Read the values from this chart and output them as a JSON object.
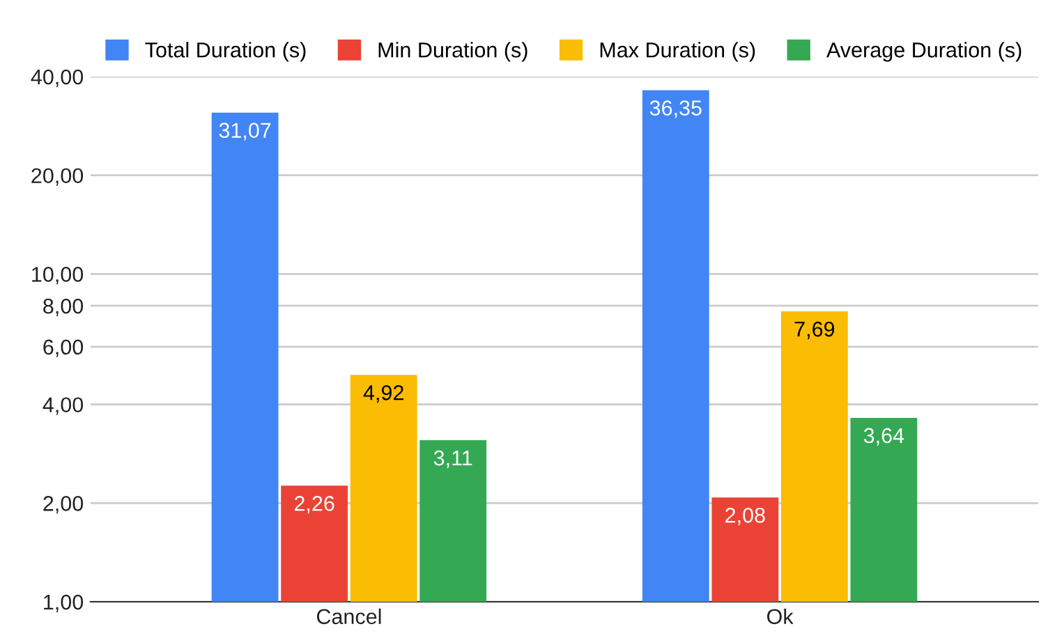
{
  "chart_data": {
    "type": "bar",
    "categories": [
      "Cancel",
      "Ok"
    ],
    "log": true,
    "ylim": [
      1,
      40
    ],
    "yticks": [
      {
        "value": 1,
        "label": "1,00"
      },
      {
        "value": 2,
        "label": "2,00"
      },
      {
        "value": 4,
        "label": "4,00"
      },
      {
        "value": 6,
        "label": "6,00"
      },
      {
        "value": 8,
        "label": "8,00"
      },
      {
        "value": 10,
        "label": "10,00"
      },
      {
        "value": 20,
        "label": "20,00"
      },
      {
        "value": 40,
        "label": "40,00"
      }
    ],
    "grid": "y",
    "legend": "top",
    "series": [
      {
        "name": "Total Duration (s)",
        "color": "#4285f4",
        "values": [
          31.07,
          36.35
        ],
        "value_labels": [
          "31,07",
          "36,35"
        ]
      },
      {
        "name": "Min Duration (s)",
        "color": "#ea4335",
        "values": [
          2.26,
          2.08
        ],
        "value_labels": [
          "2,26",
          "2,08"
        ]
      },
      {
        "name": "Max Duration (s)",
        "color": "#fbbc04",
        "values": [
          4.92,
          7.69
        ],
        "value_labels": [
          "4,92",
          "7,69"
        ]
      },
      {
        "name": "Average Duration (s)",
        "color": "#34a853",
        "values": [
          3.11,
          3.64
        ],
        "value_labels": [
          "3,11",
          "3,64"
        ]
      }
    ]
  }
}
